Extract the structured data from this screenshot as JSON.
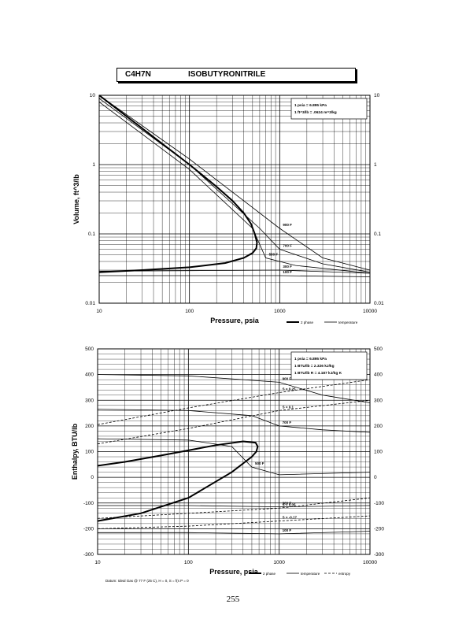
{
  "header": {
    "formula": "C4H7N",
    "compound": "ISOBUTYRONITRILE"
  },
  "page_number": "255",
  "chart_data": [
    {
      "type": "line",
      "xlabel": "Pressure,  psia",
      "ylabel": "Volume, ft^3/lb",
      "xscale": "log",
      "yscale": "log",
      "xlim": [
        10,
        10000
      ],
      "ylim": [
        0.01,
        10
      ],
      "x_ticks": [
        "10",
        "100",
        "1000",
        "10000"
      ],
      "y_ticks": [
        "0.01",
        "0.1",
        "1",
        "10"
      ],
      "grid": true,
      "info_box": [
        "1 psia  =  6.895 kPa",
        "1 ft^3/lb  =  .0624 m^3/kg"
      ],
      "legend": {
        "placement": "bottom-right",
        "entries": [
          "2 phase",
          "temperature"
        ]
      },
      "series": [
        {
          "name": "2 phase",
          "role": "dome",
          "x": [
            10,
            20,
            50,
            100,
            200,
            300,
            400,
            480,
            530,
            560,
            550,
            500,
            400,
            250,
            100,
            30,
            10
          ],
          "y": [
            10,
            5,
            2,
            1,
            0.48,
            0.3,
            0.2,
            0.14,
            0.1,
            0.075,
            0.062,
            0.053,
            0.045,
            0.038,
            0.033,
            0.03,
            0.028
          ]
        },
        {
          "label": "900 F",
          "x": [
            10,
            100,
            1000,
            3000,
            10000
          ],
          "y": [
            10,
            1.2,
            0.12,
            0.045,
            0.03
          ]
        },
        {
          "label": "700 F",
          "x": [
            10,
            100,
            600,
            1000,
            3000,
            10000
          ],
          "y": [
            9,
            1,
            0.12,
            0.06,
            0.037,
            0.028
          ]
        },
        {
          "label": "500 F",
          "x": [
            10,
            100,
            500,
            700,
            1500,
            10000
          ],
          "y": [
            8,
            0.85,
            0.12,
            0.045,
            0.035,
            0.027
          ]
        },
        {
          "label": "300 F",
          "x": [
            10,
            100,
            1000,
            10000
          ],
          "y": [
            0.029,
            0.0295,
            0.03,
            0.027
          ]
        },
        {
          "label": "100 F",
          "x": [
            10,
            100,
            1000,
            10000
          ],
          "y": [
            0.025,
            0.025,
            0.025,
            0.024
          ]
        }
      ],
      "annotations": [
        "900 F",
        "700 F",
        "500 F",
        "300 F",
        "100 F"
      ]
    },
    {
      "type": "line",
      "xlabel": "Pressure,  psia",
      "ylabel": "Enthalpy, BTU/lb",
      "xscale": "log",
      "xlim": [
        10,
        10000
      ],
      "ylim": [
        -300,
        500
      ],
      "x_ticks": [
        "10",
        "100",
        "1000",
        "10000"
      ],
      "y_ticks": [
        "-300",
        "-200",
        "-100",
        "0",
        "100",
        "200",
        "300",
        "400",
        "500"
      ],
      "grid": true,
      "info_box": [
        "1 psia  =  6.895 kPa",
        "1 BTU/lb  =  2.326 kJ/kg",
        "1 BTU/lb R  =  4.187 kJ/kg K"
      ],
      "legend": {
        "placement": "bottom-right",
        "entries": [
          "2 phase",
          "temperature",
          "entropy"
        ]
      },
      "footnote": "Datum: Ideal Gas @ 77 F (25 C),  H = 0,  S = f(s P = 0",
      "series": [
        {
          "name": "2 phase",
          "role": "dome",
          "x": [
            10,
            20,
            50,
            100,
            200,
            400,
            550,
            580,
            560,
            500,
            300,
            100,
            30,
            10
          ],
          "y": [
            45,
            60,
            85,
            105,
            125,
            140,
            135,
            120,
            100,
            80,
            20,
            -80,
            -140,
            -170
          ]
        },
        {
          "label": "900 F",
          "x": [
            10,
            100,
            1000,
            3000,
            10000
          ],
          "y": [
            400,
            395,
            370,
            320,
            290
          ]
        },
        {
          "label": "700 F",
          "x": [
            10,
            100,
            500,
            1000,
            3000,
            10000
          ],
          "y": [
            265,
            260,
            240,
            200,
            185,
            175
          ]
        },
        {
          "label": "500 F",
          "x": [
            10,
            100,
            300,
            500,
            1000,
            10000
          ],
          "y": [
            150,
            145,
            120,
            40,
            10,
            20
          ]
        },
        {
          "label": "300 F",
          "x": [
            10,
            100,
            1000,
            10000
          ],
          "y": [
            -110,
            -110,
            -115,
            -110
          ]
        },
        {
          "label": "100 F",
          "x": [
            10,
            100,
            1000,
            10000
          ],
          "y": [
            -215,
            -215,
            -220,
            -210
          ]
        },
        {
          "label": "S = 0.25",
          "x": [
            10,
            100,
            1000,
            10000
          ],
          "y": [
            205,
            270,
            330,
            380
          ]
        },
        {
          "label": "S = 0.1",
          "x": [
            10,
            100,
            1000,
            10000
          ],
          "y": [
            130,
            190,
            260,
            300
          ]
        },
        {
          "label": "S = 0.05",
          "x": [
            10,
            100,
            1000,
            10000
          ],
          "y": [
            -160,
            -140,
            -120,
            -80
          ]
        },
        {
          "label": "S = -0.17",
          "x": [
            10,
            100,
            1000,
            10000
          ],
          "y": [
            -200,
            -190,
            -170,
            -150
          ]
        }
      ],
      "annotations": [
        "900 F",
        "700 F",
        "500 F",
        "300 F",
        "100 F",
        "S = 0.25",
        "S = 0.1",
        "S = 0.05",
        "S = -0.17"
      ]
    }
  ]
}
